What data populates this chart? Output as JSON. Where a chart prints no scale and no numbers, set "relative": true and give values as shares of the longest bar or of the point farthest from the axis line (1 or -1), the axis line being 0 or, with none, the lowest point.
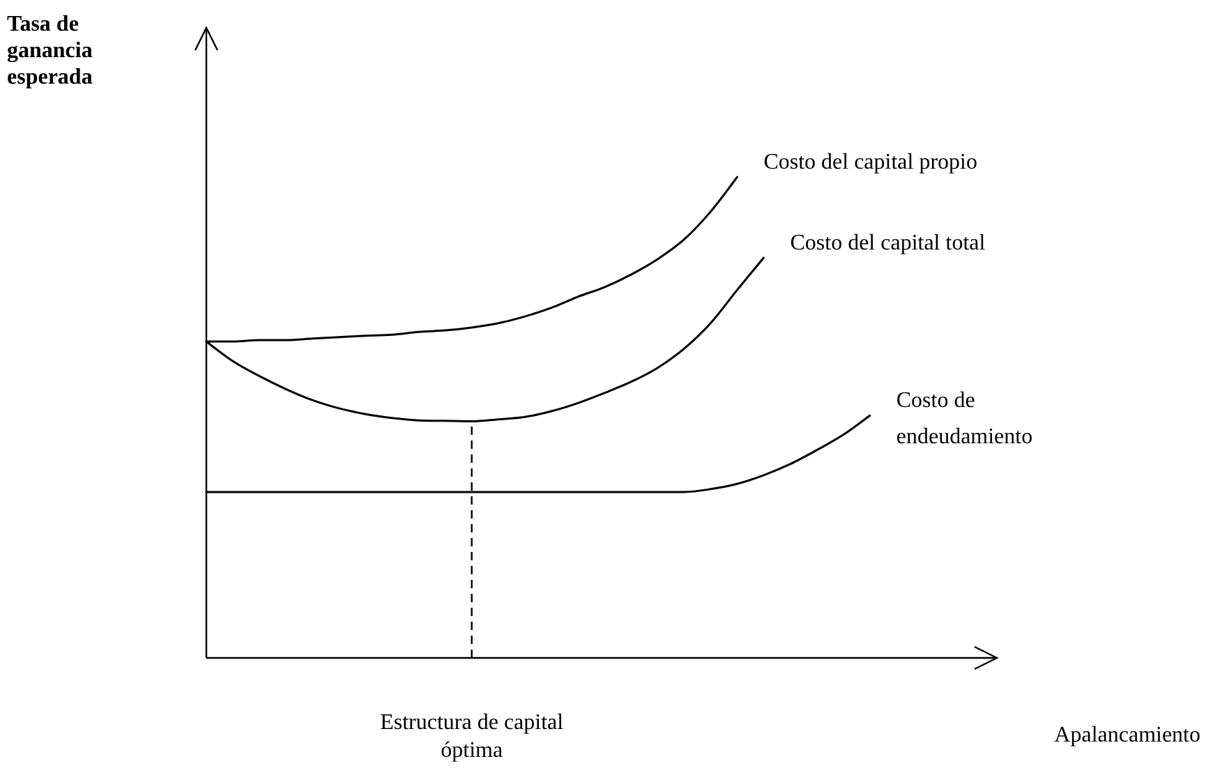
{
  "chart_data": {
    "type": "line",
    "relative": true,
    "categories": [
      null,
      null,
      null,
      null,
      null,
      null,
      null,
      null,
      null,
      null,
      null,
      null,
      null,
      null,
      null,
      null,
      null,
      null,
      null,
      null,
      null,
      null,
      null,
      null,
      null,
      null
    ],
    "series": [
      {
        "name": "Costo del capital propio",
        "color": "#000000",
        "values": [
          0.658,
          0.658,
          0.661,
          0.661,
          0.664,
          0.667,
          0.67,
          0.672,
          0.678,
          0.681,
          0.687,
          0.696,
          0.71,
          0.728,
          0.751,
          0.771,
          0.797,
          0.829,
          0.87,
          0.928,
          1.0,
          null,
          null,
          null,
          null,
          null
        ]
      },
      {
        "name": "Costo del capital total",
        "color": "#000000",
        "values": [
          0.658,
          0.617,
          0.586,
          0.559,
          0.536,
          0.519,
          0.507,
          0.499,
          0.494,
          0.493,
          0.492,
          0.496,
          0.501,
          0.513,
          0.53,
          0.551,
          0.574,
          0.603,
          0.643,
          0.696,
          0.765,
          0.832,
          null,
          null,
          null,
          null
        ]
      },
      {
        "name": "Costo de endeudamiento",
        "color": "#000000",
        "values": [
          0.345,
          0.345,
          0.345,
          0.345,
          0.345,
          0.345,
          0.345,
          0.345,
          0.345,
          0.345,
          0.345,
          0.345,
          0.345,
          0.345,
          0.345,
          0.345,
          0.345,
          0.345,
          0.345,
          0.351,
          0.362,
          0.38,
          0.403,
          0.432,
          0.464,
          0.504
        ]
      }
    ],
    "annotations": [
      "Tasa de ganancia esperada",
      "Estructura de capital óptima",
      "Apalancamiento"
    ],
    "marker": "none",
    "line_style": "solid"
  }
}
